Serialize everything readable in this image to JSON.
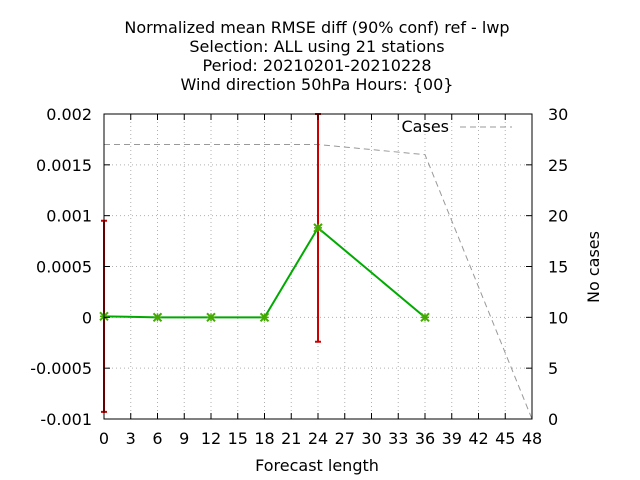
{
  "chart_data": {
    "type": "line",
    "title_lines": [
      "Normalized mean RMSE diff (90% conf) ref - lwp",
      "Selection: ALL using    21 stations",
      "Period: 20210201-20210228",
      "Wind direction 50hPa   Hours: {00}"
    ],
    "xlabel": "Forecast length",
    "ylabel": "",
    "y2label": "No cases",
    "xlim": [
      0,
      48
    ],
    "ylim": [
      -0.001,
      0.002
    ],
    "y2lim": [
      0,
      30
    ],
    "xticks": [
      0,
      3,
      6,
      9,
      12,
      15,
      18,
      21,
      24,
      27,
      30,
      33,
      36,
      39,
      42,
      45,
      48
    ],
    "yticks": [
      -0.001,
      -0.0005,
      0,
      0.0005,
      0.001,
      0.0015,
      0.002
    ],
    "ytick_labels": [
      "-0.001",
      "-0.0005",
      "0",
      "0.0005",
      "0.001",
      "0.0015",
      "0.002"
    ],
    "y2ticks": [
      0,
      5,
      10,
      15,
      20,
      25,
      30
    ],
    "grid": true,
    "legend_position": "top-right",
    "series": [
      {
        "name": "",
        "color": "#00aa00",
        "marker_color": "#44aa00",
        "x": [
          0,
          6,
          12,
          18,
          24,
          36
        ],
        "values": [
          1e-05,
          0.0,
          0.0,
          0.0,
          0.00088,
          0.0
        ]
      },
      {
        "name": "Cases",
        "axis": "y2",
        "color": "#999999",
        "dashed": true,
        "x": [
          0,
          24,
          36,
          48
        ],
        "values": [
          27,
          27,
          26,
          0
        ]
      }
    ],
    "error_bars": {
      "color": "#cc0000",
      "x": [
        0,
        24
      ],
      "low": [
        -0.00093,
        -0.00024
      ],
      "high": [
        0.00095,
        0.002
      ]
    }
  }
}
